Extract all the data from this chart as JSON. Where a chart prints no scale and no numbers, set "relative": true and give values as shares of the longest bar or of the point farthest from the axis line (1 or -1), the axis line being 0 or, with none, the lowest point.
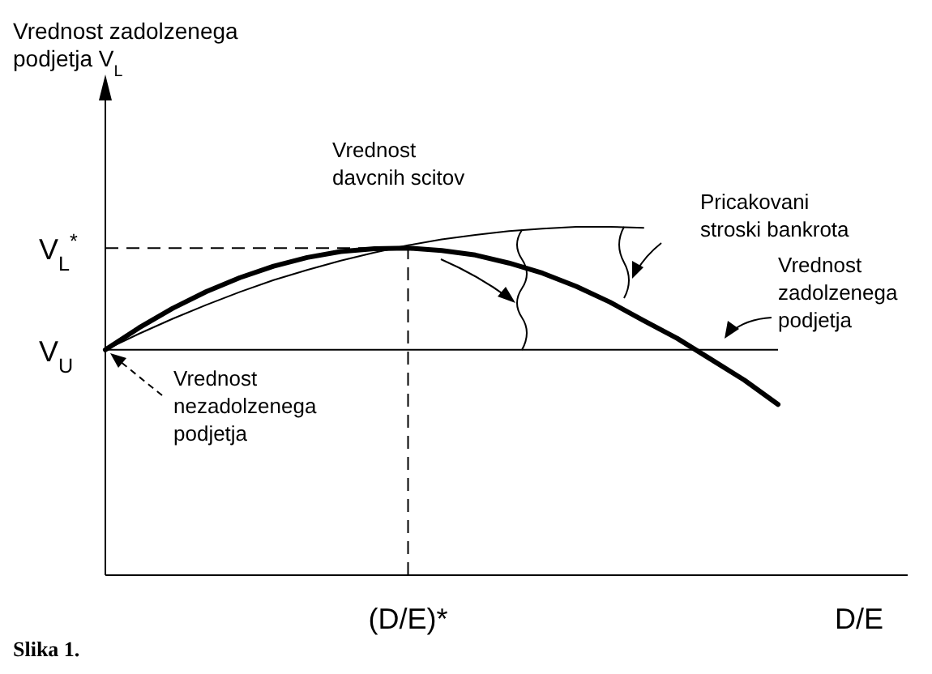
{
  "chart_data": {
    "type": "line",
    "relative": true,
    "xlabel": "D/E",
    "categories": [
      null,
      null,
      null,
      null,
      null,
      null,
      null,
      null,
      null,
      null,
      null,
      null,
      null,
      null,
      null,
      null,
      null,
      null,
      null,
      null,
      null
    ],
    "series": [
      {
        "color": "#000000",
        "values": [
          0.647,
          0.71,
          0.766,
          0.814,
          0.854,
          0.887,
          0.912,
          0.929,
          0.937,
          0.939,
          0.932,
          0.919,
          0.896,
          0.867,
          0.829,
          0.784,
          0.731,
          0.68,
          0.62,
          0.56,
          0.49
        ]
      },
      {
        "color": "#000000",
        "values": [
          0.647,
          0.693,
          0.736,
          0.776,
          0.813,
          0.847,
          0.876,
          0.903,
          0.926,
          0.947,
          0.964,
          0.977,
          0.988,
          0.995,
          1.0,
          1.0,
          0.997,
          null,
          null,
          null,
          null
        ]
      }
    ],
    "ref_lines": [
      {
        "axis": "y",
        "value": 0.939,
        "label": "V$_{L}$$^{*}$",
        "line_style": "dashed"
      },
      {
        "axis": "y",
        "value": 0.647,
        "label": "V$_{U}$",
        "line_style": "solid"
      }
    ],
    "annotations": [
      "Vrednost zadolzenega\npodjetja V$_{L}$",
      "(D/E)*",
      "Vrednost\ndavcnih scitov",
      "Pricakovani\nstroski bankrota",
      "Vrednost\nzadolzenega\npodjetja",
      "Vrednost\nnezadolzenega\npodjetja",
      "Slika 1."
    ]
  }
}
